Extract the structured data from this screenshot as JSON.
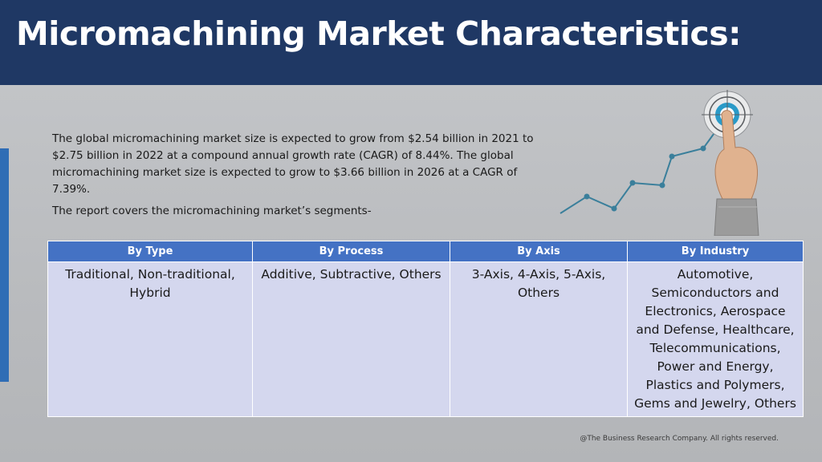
{
  "slide": {
    "title": "Micromachining Market Characteristics:",
    "intro": "The global micromachining market size is expected to grow from $2.54 billion in 2021 to $2.75 billion in 2022 at a compound annual growth rate (CAGR) of 8.44%. The global micromachining market size is expected to grow to $3.66 billion in 2026 at a CAGR of 7.39%.",
    "segments_line": "The report covers the micromachining market’s segments-",
    "footer": "@The Business Research Company. All rights reserved."
  },
  "table": {
    "headers": [
      "By Type",
      "By Process",
      "By Axis",
      "By Industry"
    ],
    "cells": [
      "Traditional, Non-traditional, Hybrid",
      "Additive, Subtractive, Others",
      "3-Axis, 4-Axis, 5-Axis, Others",
      "Automotive, Semiconductors and Electronics, Aerospace and Defense, Healthcare, Telecommunications, Power and Energy, Plastics and Polymers, Gems and Jewelry, Others"
    ]
  },
  "colors": {
    "header_bg": "#1f3864",
    "table_header": "#4472c4",
    "table_cell": "#d4d7ee",
    "accent": "#2f6db5",
    "chart_line": "#3a7f9b"
  },
  "icons": [
    "growth-chart-icon",
    "target-icon",
    "pointing-hand-icon"
  ]
}
